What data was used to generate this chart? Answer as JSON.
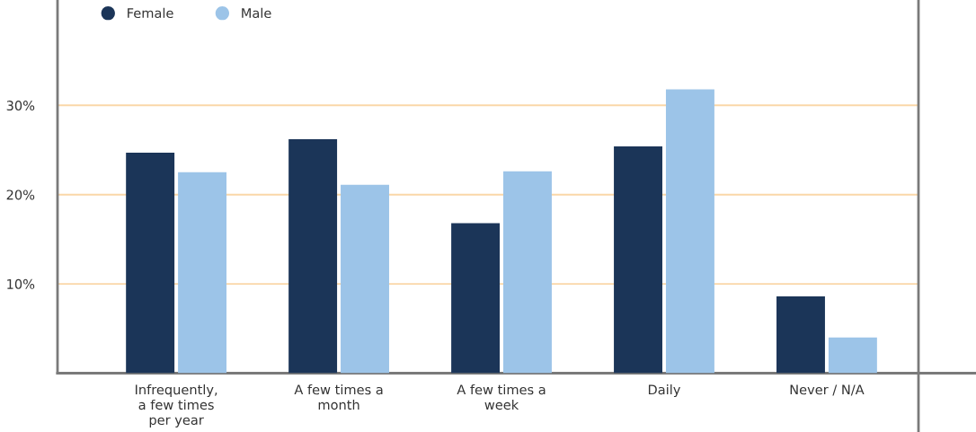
{
  "chart_data": {
    "type": "bar",
    "categories": [
      "Infrequently,\na few times\nper year",
      "A few times a\nmonth",
      "A few times a\nweek",
      "Daily",
      "Never / N/A"
    ],
    "series": [
      {
        "name": "Female",
        "color": "#1b3558",
        "values": [
          24.7,
          26.2,
          16.8,
          25.4,
          8.6
        ]
      },
      {
        "name": "Male",
        "color": "#9cc4e8",
        "values": [
          22.5,
          21.1,
          22.6,
          31.8,
          4.0
        ]
      }
    ],
    "ylim": [
      0,
      41.8
    ],
    "yticks": [
      {
        "value": 10,
        "label": "10%"
      },
      {
        "value": 20,
        "label": "20%"
      },
      {
        "value": 30,
        "label": "30%"
      }
    ],
    "grid": "y",
    "legend": "top left"
  }
}
